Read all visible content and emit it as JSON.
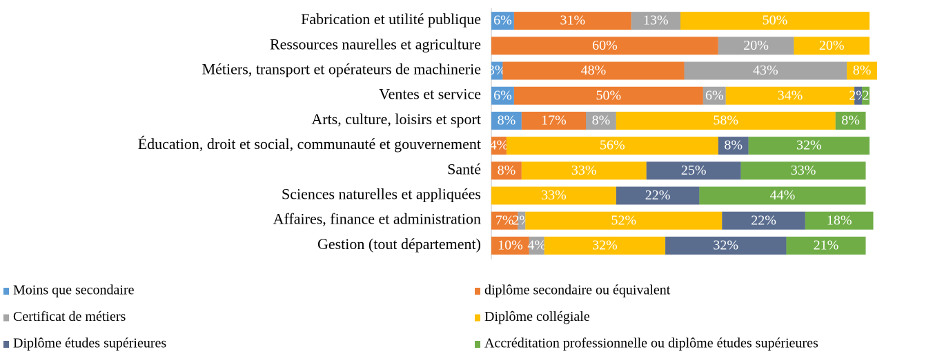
{
  "chart_data": {
    "type": "stacked_barh",
    "categories": [
      "Fabrication et utilité publique",
      "Ressources naurelles et agriculture",
      "Métiers, transport et opérateurs de machinerie",
      "Ventes et service",
      "Arts, culture, loisirs et sport",
      "Éducation, droit et social, communauté et gouvernement",
      "Santé",
      "Sciences naturelles et appliquées",
      "Affaires, finance et administration",
      "Gestion (tout département)"
    ],
    "xlim": [
      0,
      100
    ],
    "series": [
      {
        "name": "Moins que secondaire",
        "color": "#5b9bd5",
        "values": [
          6,
          null,
          3,
          6,
          8,
          null,
          null,
          null,
          null,
          null
        ],
        "value_labels": [
          "6%",
          null,
          "3%",
          "6%",
          "8%",
          null,
          null,
          null,
          null,
          null
        ]
      },
      {
        "name": "diplôme secondaire ou équivalent",
        "color": "#ed7d31",
        "values": [
          31,
          60,
          48,
          50,
          17,
          4,
          8,
          null,
          7,
          10
        ],
        "value_labels": [
          "31%",
          "60%",
          "48%",
          "50%",
          "17%",
          "4%",
          "8%",
          null,
          "7%",
          "10%"
        ]
      },
      {
        "name": "Certificat de métiers",
        "color": "#a5a5a5",
        "values": [
          13,
          20,
          43,
          6,
          8,
          null,
          null,
          null,
          2,
          4
        ],
        "value_labels": [
          "13%",
          "20%",
          "43%",
          "6%",
          "8%",
          null,
          null,
          null,
          "2%",
          "4%"
        ]
      },
      {
        "name": "Diplôme collégiale",
        "color": "#ffc000",
        "values": [
          50,
          20,
          8,
          34,
          58,
          56,
          33,
          33,
          52,
          32
        ],
        "value_labels": [
          "50%",
          "20%",
          "8%",
          "34%",
          "58%",
          "56%",
          "33%",
          "33%",
          "52%",
          "32%"
        ]
      },
      {
        "name": "Diplôme études supérieures",
        "color": "#5a6d8f",
        "values": [
          null,
          null,
          null,
          2,
          null,
          8,
          25,
          22,
          22,
          32
        ],
        "value_labels": [
          null,
          null,
          null,
          "2%",
          null,
          "8%",
          "25%",
          "22%",
          "22%",
          "32%"
        ]
      },
      {
        "name": "Accréditation professionnelle ou diplôme études supérieures",
        "color": "#70ad47",
        "values": [
          null,
          null,
          null,
          2,
          8,
          32,
          33,
          44,
          18,
          21
        ],
        "value_labels": [
          null,
          null,
          null,
          "2",
          "8%",
          "32%",
          "33%",
          "44%",
          "18%",
          "21%"
        ]
      }
    ]
  }
}
